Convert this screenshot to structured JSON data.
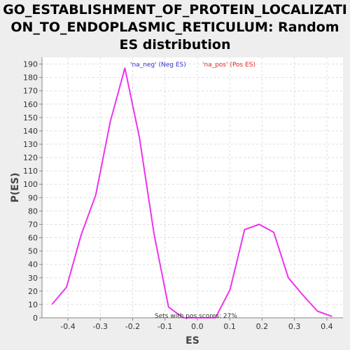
{
  "chart_data": {
    "type": "line",
    "title": "GO_ESTABLISHMENT_OF_PROTEIN_LOCALIZATION_TO_ENDOPLASMIC_RETICULUM: Random ES distribution",
    "title_lines": [
      "GO_ESTABLISHMENT_OF_PROTEIN_LOCALIZATI",
      "ON_TO_ENDOPLASMIC_RETICULUM: Random",
      "ES distribution"
    ],
    "xlabel": "ES",
    "ylabel": "P(ES)",
    "xlim": [
      -0.48,
      0.45
    ],
    "ylim": [
      0,
      195
    ],
    "x_ticks": [
      "-0.4",
      "-0.3",
      "-0.2",
      "-0.1",
      "0.0",
      "0.1",
      "0.2",
      "0.3",
      "0.4"
    ],
    "x_tick_values": [
      -0.4,
      -0.3,
      -0.2,
      -0.1,
      0.0,
      0.1,
      0.2,
      0.3,
      0.4
    ],
    "y_ticks": [
      "0",
      "10",
      "20",
      "30",
      "40",
      "50",
      "60",
      "70",
      "80",
      "90",
      "100",
      "110",
      "120",
      "130",
      "140",
      "150",
      "160",
      "170",
      "180",
      "190"
    ],
    "y_tick_values": [
      0,
      10,
      20,
      30,
      40,
      50,
      60,
      70,
      80,
      90,
      100,
      110,
      120,
      130,
      140,
      150,
      160,
      170,
      180,
      190
    ],
    "grid": true,
    "legend": [
      {
        "label": "'na_neg' (Neg ES)",
        "color": "#3333cc"
      },
      {
        "label": "'na_pos' (Pos ES)",
        "color": "#ee2222"
      }
    ],
    "annotation": "Sets with pos scores: 27%",
    "series": [
      {
        "color": "#ee33ee",
        "x": [
          -0.449,
          -0.404,
          -0.359,
          -0.314,
          -0.269,
          -0.224,
          -0.179,
          -0.134,
          -0.089,
          -0.044,
          0.001,
          0.056,
          0.101,
          0.146,
          0.191,
          0.236,
          0.281,
          0.326,
          0.371,
          0.416
        ],
        "y": [
          10,
          23,
          62,
          92,
          147,
          187,
          135,
          63,
          8,
          0,
          0,
          0,
          21,
          66,
          70,
          64,
          30,
          17,
          5,
          1
        ]
      }
    ]
  }
}
